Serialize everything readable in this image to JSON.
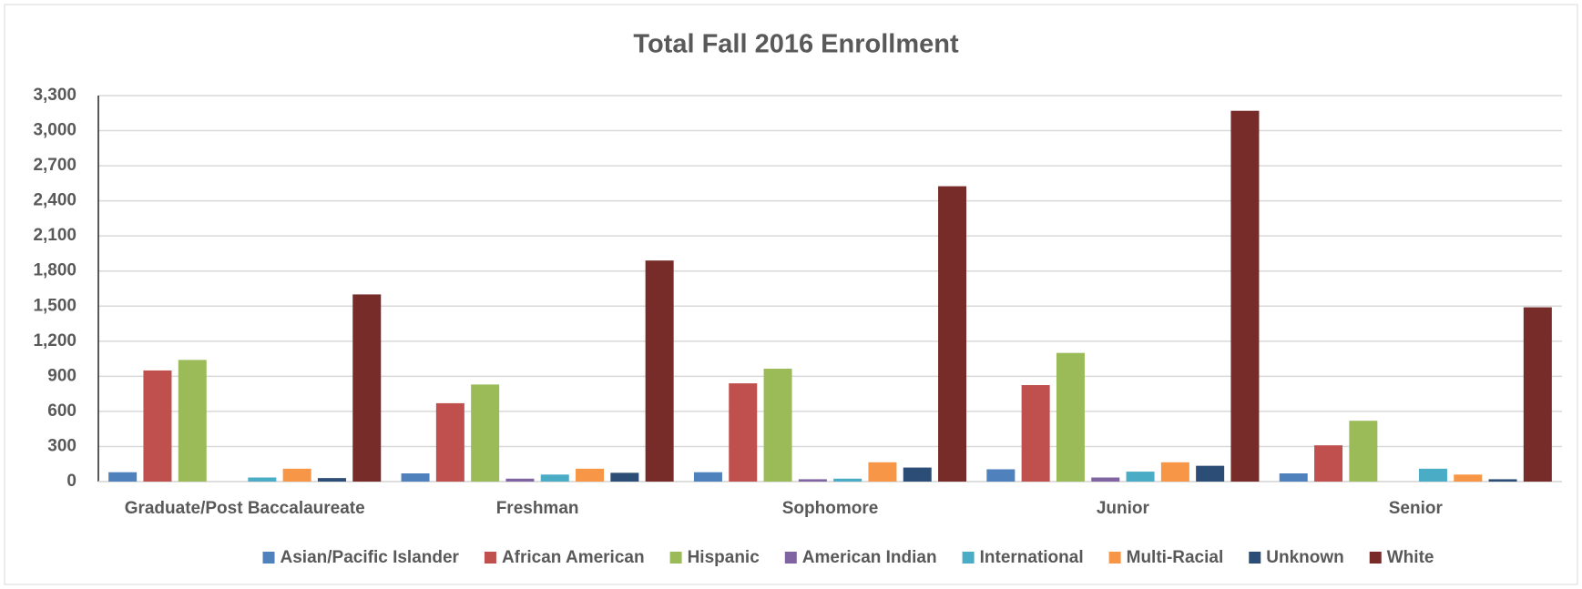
{
  "chart_data": {
    "type": "bar",
    "title": "Total Fall 2016 Enrollment",
    "categories": [
      "Graduate/Post Baccalaureate",
      "Freshman",
      "Sophomore",
      "Junior",
      "Senior"
    ],
    "series": [
      {
        "name": "Asian/Pacific Islander",
        "color": "#4f81bd",
        "values": [
          80,
          70,
          80,
          105,
          70
        ]
      },
      {
        "name": "African American",
        "color": "#c0504d",
        "values": [
          950,
          670,
          840,
          825,
          310
        ]
      },
      {
        "name": "Hispanic",
        "color": "#9bbb59",
        "values": [
          1040,
          830,
          965,
          1100,
          520
        ]
      },
      {
        "name": "American Indian",
        "color": "#8064a2",
        "values": [
          0,
          25,
          20,
          35,
          0
        ]
      },
      {
        "name": "International",
        "color": "#4bacc6",
        "values": [
          35,
          60,
          25,
          85,
          110
        ]
      },
      {
        "name": "Multi-Racial",
        "color": "#f79646",
        "values": [
          110,
          110,
          165,
          165,
          60
        ]
      },
      {
        "name": "Unknown",
        "color": "#2c4d75",
        "values": [
          30,
          75,
          120,
          135,
          20
        ]
      },
      {
        "name": "White",
        "color": "#772c2a",
        "values": [
          1600,
          1890,
          2525,
          3170,
          1490
        ]
      }
    ],
    "ylim": [
      0,
      3300
    ],
    "yticks": [
      0,
      300,
      600,
      900,
      {
        "value": 1200,
        "label": "1,200"
      },
      {
        "value": 1500,
        "label": "1,500"
      },
      {
        "value": 1800,
        "label": "1,800"
      },
      {
        "value": 2100,
        "label": "2,100"
      },
      {
        "value": 2400,
        "label": "2,400"
      },
      {
        "value": 2700,
        "label": "2,700"
      },
      {
        "value": 3000,
        "label": "3,000"
      },
      {
        "value": 3300,
        "label": "3,300"
      }
    ],
    "grid": true,
    "legend": "bottom"
  }
}
